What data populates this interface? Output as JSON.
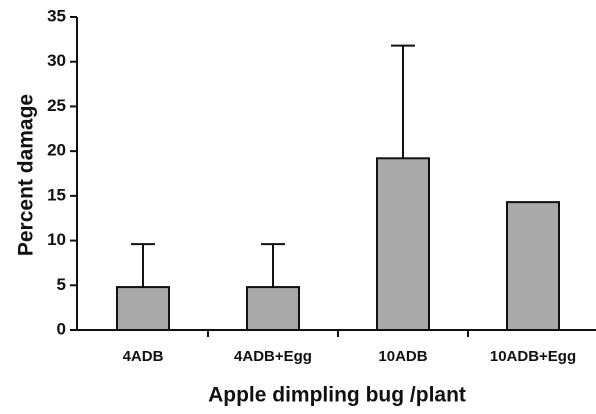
{
  "chart_data": {
    "type": "bar",
    "categories": [
      "4ADB",
      "4ADB+Egg",
      "10ADB",
      "10ADB+Egg"
    ],
    "values": [
      4.8,
      4.8,
      19.2,
      14.3
    ],
    "errors": [
      4.8,
      4.8,
      12.6,
      null
    ],
    "color": "#a9a9a9",
    "x_label": "Apple dimpling bug /plant",
    "y_label": "Percent damage",
    "ylim": [
      0,
      35
    ],
    "yticks": [
      0,
      5,
      10,
      15,
      20,
      25,
      30,
      35
    ],
    "grid": false
  }
}
